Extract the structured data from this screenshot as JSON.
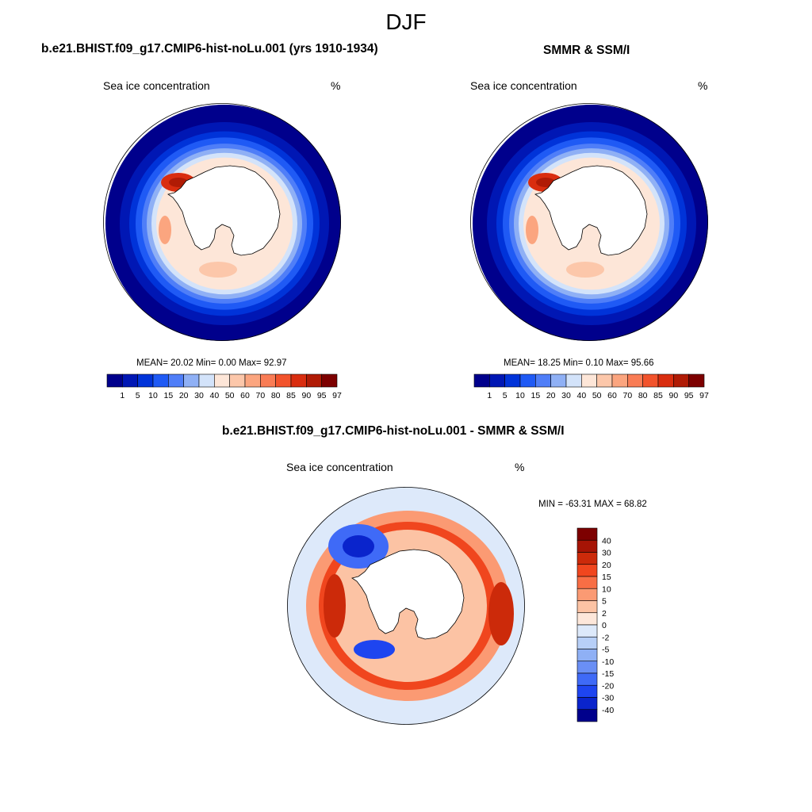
{
  "figure": {
    "title": "DJF",
    "colors": {
      "sequential": [
        "#00008c",
        "#0017b4",
        "#0033d9",
        "#1f5af5",
        "#4f7ef8",
        "#8fb0f5",
        "#d3e3fa",
        "#fde6d8",
        "#fcc7aa",
        "#fba57f",
        "#f97c55",
        "#f2532c",
        "#d92d0f",
        "#b01b05",
        "#7d0000"
      ],
      "diverging": [
        "#7d0000",
        "#a61405",
        "#cc2a0a",
        "#f0461e",
        "#f86e45",
        "#fb9a73",
        "#fcc3a4",
        "#fde7da",
        "#dde9fa",
        "#b7cff7",
        "#8fb0f5",
        "#6a8ff5",
        "#3f6af7",
        "#1e45f0",
        "#0a24cc",
        "#00008c"
      ],
      "land": "#ffffff",
      "outline": "#000000"
    }
  },
  "panels": [
    {
      "id": "model",
      "title": "b.e21.BHIST.f09_g17.CMIP6-hist-noLu.001 (yrs 1910-1934)",
      "variable": "Sea ice concentration",
      "units": "%",
      "stats": "MEAN=  20.02  Min=   0.00  Max=  92.97",
      "colorbar_labels": [
        "1",
        "5",
        "10",
        "15",
        "20",
        "30",
        "40",
        "50",
        "60",
        "70",
        "80",
        "85",
        "90",
        "95",
        "97"
      ]
    },
    {
      "id": "obs",
      "title": "SMMR & SSM/I",
      "variable": "Sea ice concentration",
      "units": "%",
      "stats": "MEAN=  18.25  Min=   0.10  Max=  95.66",
      "colorbar_labels": [
        "1",
        "5",
        "10",
        "15",
        "20",
        "30",
        "40",
        "50",
        "60",
        "70",
        "80",
        "85",
        "90",
        "95",
        "97"
      ]
    },
    {
      "id": "diff",
      "title": "b.e21.BHIST.f09_g17.CMIP6-hist-noLu.001 - SMMR & SSM/I",
      "variable": "Sea ice concentration",
      "units": "%",
      "stats": "MIN = -63.31 MAX =  68.82",
      "colorbar_labels": [
        "40",
        "30",
        "20",
        "15",
        "10",
        "5",
        "2",
        "0",
        "-2",
        "-5",
        "-10",
        "-15",
        "-20",
        "-30",
        "-40"
      ]
    }
  ]
}
